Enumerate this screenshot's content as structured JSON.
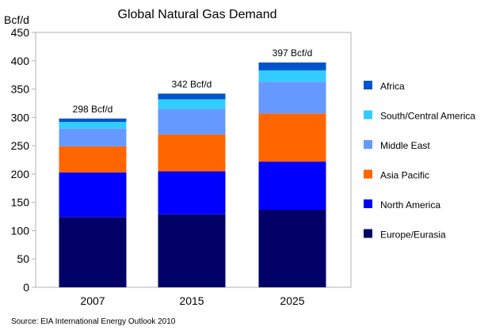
{
  "chart_data": {
    "type": "bar",
    "stacked": true,
    "title": "Global Natural Gas Demand",
    "ylabel": "Bcf/d",
    "xlabel": "",
    "ylim": [
      0,
      450
    ],
    "yticks": [
      0,
      50,
      100,
      150,
      200,
      250,
      300,
      350,
      400,
      450
    ],
    "grid": false,
    "legend_position": "right",
    "categories": [
      "2007",
      "2015",
      "2025"
    ],
    "totals": [
      "298 Bcf/d",
      "342 Bcf/d",
      "397 Bcf/d"
    ],
    "series": [
      {
        "name": "Europe/Eurasia",
        "color": "#000066",
        "values": [
          124,
          129,
          137
        ]
      },
      {
        "name": "North America",
        "color": "#0000ff",
        "values": [
          79,
          76,
          85
        ]
      },
      {
        "name": "Asia Pacific",
        "color": "#ff6600",
        "values": [
          46,
          65,
          85
        ]
      },
      {
        "name": "Middle East",
        "color": "#6699ff",
        "values": [
          31,
          45,
          56
        ]
      },
      {
        "name": "South/Central America",
        "color": "#33ccff",
        "values": [
          12,
          17,
          20
        ]
      },
      {
        "name": "Africa",
        "color": "#0055cc",
        "values": [
          6,
          10,
          14
        ]
      }
    ]
  },
  "source": "Source: EIA International Energy Outlook 2010"
}
